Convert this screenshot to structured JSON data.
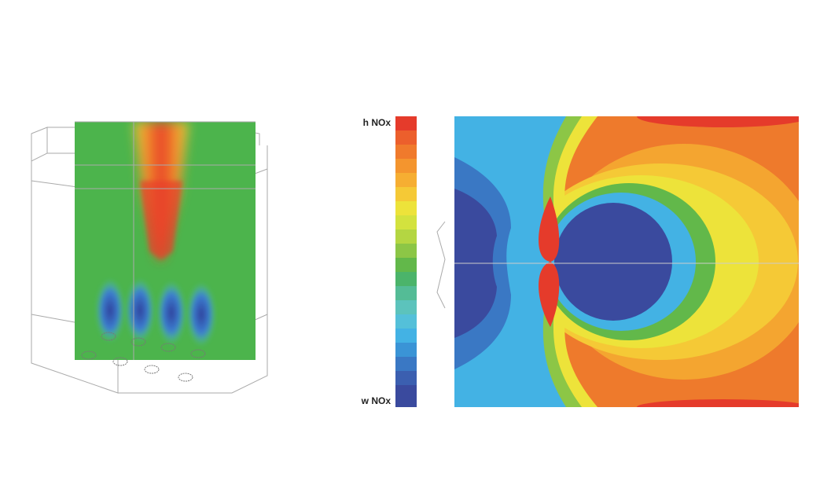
{
  "legend": {
    "high_label": "h NOx",
    "low_label": "w NOx"
  }
}
